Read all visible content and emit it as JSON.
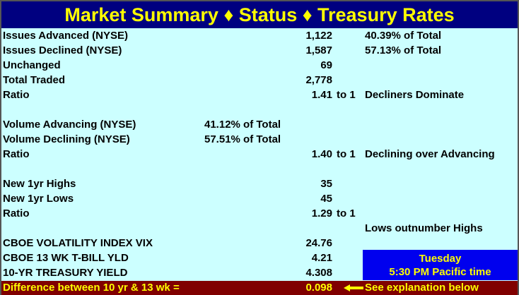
{
  "title": "Market Summary ♦ Status ♦ Treasury Rates",
  "rows": [
    {
      "label": "Issues Advanced (NYSE)",
      "pct": "",
      "value": "1,122",
      "to": "",
      "note": "40.39% of Total"
    },
    {
      "label": "Issues Declined (NYSE)",
      "pct": "",
      "value": "1,587",
      "to": "",
      "note": "57.13% of Total"
    },
    {
      "label": "Unchanged",
      "pct": "",
      "value": "69",
      "to": "",
      "note": ""
    },
    {
      "label": "Total Traded",
      "pct": "",
      "value": "2,778",
      "to": "",
      "note": ""
    },
    {
      "label": "Ratio",
      "pct": "",
      "value": "1.41",
      "to": "to 1",
      "note": "Decliners Dominate"
    },
    {
      "label": "",
      "pct": "",
      "value": "",
      "to": "",
      "note": ""
    },
    {
      "label": "Volume Advancing (NYSE)",
      "pct": "41.12% of Total",
      "value": "",
      "to": "",
      "note": ""
    },
    {
      "label": "Volume Declining (NYSE)",
      "pct": "57.51% of Total",
      "value": "",
      "to": "",
      "note": ""
    },
    {
      "label": "Ratio",
      "pct": "",
      "value": "1.40",
      "to": "to 1",
      "note": "Declining over Advancing"
    },
    {
      "label": "",
      "pct": "",
      "value": "",
      "to": "",
      "note": ""
    },
    {
      "label": "New 1yr Highs",
      "pct": "",
      "value": "35",
      "to": "",
      "note": ""
    },
    {
      "label": "New 1yr Lows",
      "pct": "",
      "value": "45",
      "to": "",
      "note": ""
    },
    {
      "label": "Ratio",
      "pct": "",
      "value": "1.29",
      "to": "to 1",
      "note": ""
    },
    {
      "label": "",
      "pct": "",
      "value": "",
      "to": "",
      "note": "Lows outnumber Highs"
    },
    {
      "label": "CBOE VOLATILITY INDEX VIX",
      "pct": "",
      "value": "24.76",
      "to": "",
      "note": ""
    },
    {
      "label": "CBOE 13 WK T-BILL YLD",
      "pct": "",
      "value": "4.21",
      "to": "",
      "note": ""
    },
    {
      "label": "10-YR TREASURY YIELD",
      "pct": "",
      "value": "4.308",
      "to": "",
      "note": ""
    }
  ],
  "day_box": {
    "day": "Tuesday",
    "time": "5:30 PM Pacific time"
  },
  "footer": {
    "label": "Difference between 10 yr & 13 wk =",
    "value": "0.098",
    "note": "See explanation below",
    "arrow_icon": "left-arrow-icon"
  },
  "colors": {
    "background": "#ccffff",
    "title_bar": "#000080",
    "title_text": "#ffff00",
    "footer_bar": "#800000",
    "day_box": "#0000ee"
  }
}
